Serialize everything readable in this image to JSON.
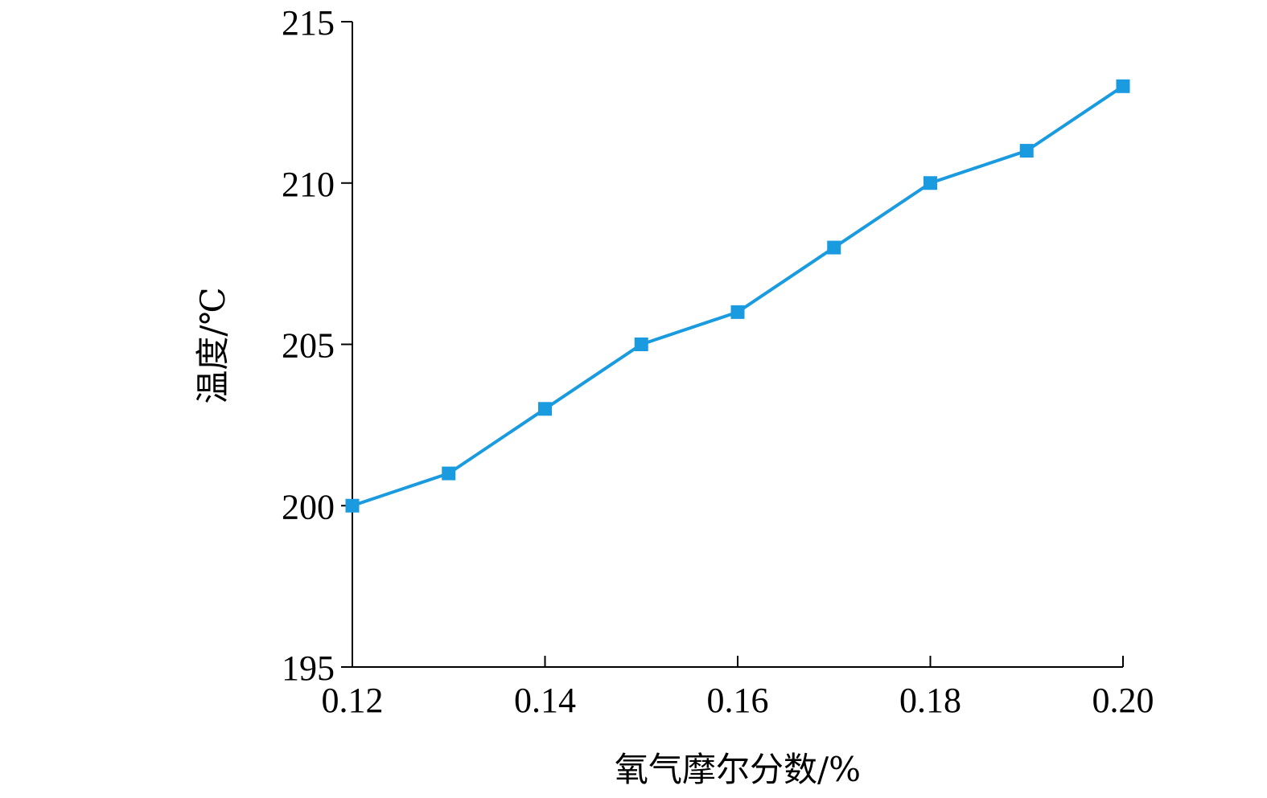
{
  "chart_data": {
    "type": "line",
    "xlabel": "氧气摩尔分数/%",
    "ylabel": "温度/℃",
    "xlim": [
      0.12,
      0.2
    ],
    "ylim": [
      195,
      215
    ],
    "x_ticks": [
      "0.12",
      "0.14",
      "0.16",
      "0.18",
      "0.20"
    ],
    "x_tick_values": [
      0.12,
      0.14,
      0.16,
      0.18,
      0.2
    ],
    "y_ticks": [
      "195",
      "200",
      "205",
      "210",
      "215"
    ],
    "y_tick_values": [
      195,
      200,
      205,
      210,
      215
    ],
    "grid": false,
    "series": [
      {
        "color": "#1a9be0",
        "marker": "square",
        "x": [
          0.12,
          0.13,
          0.14,
          0.15,
          0.16,
          0.17,
          0.18,
          0.19,
          0.2
        ],
        "y": [
          200,
          201,
          203,
          205,
          206,
          208,
          210,
          211,
          213
        ]
      }
    ]
  }
}
